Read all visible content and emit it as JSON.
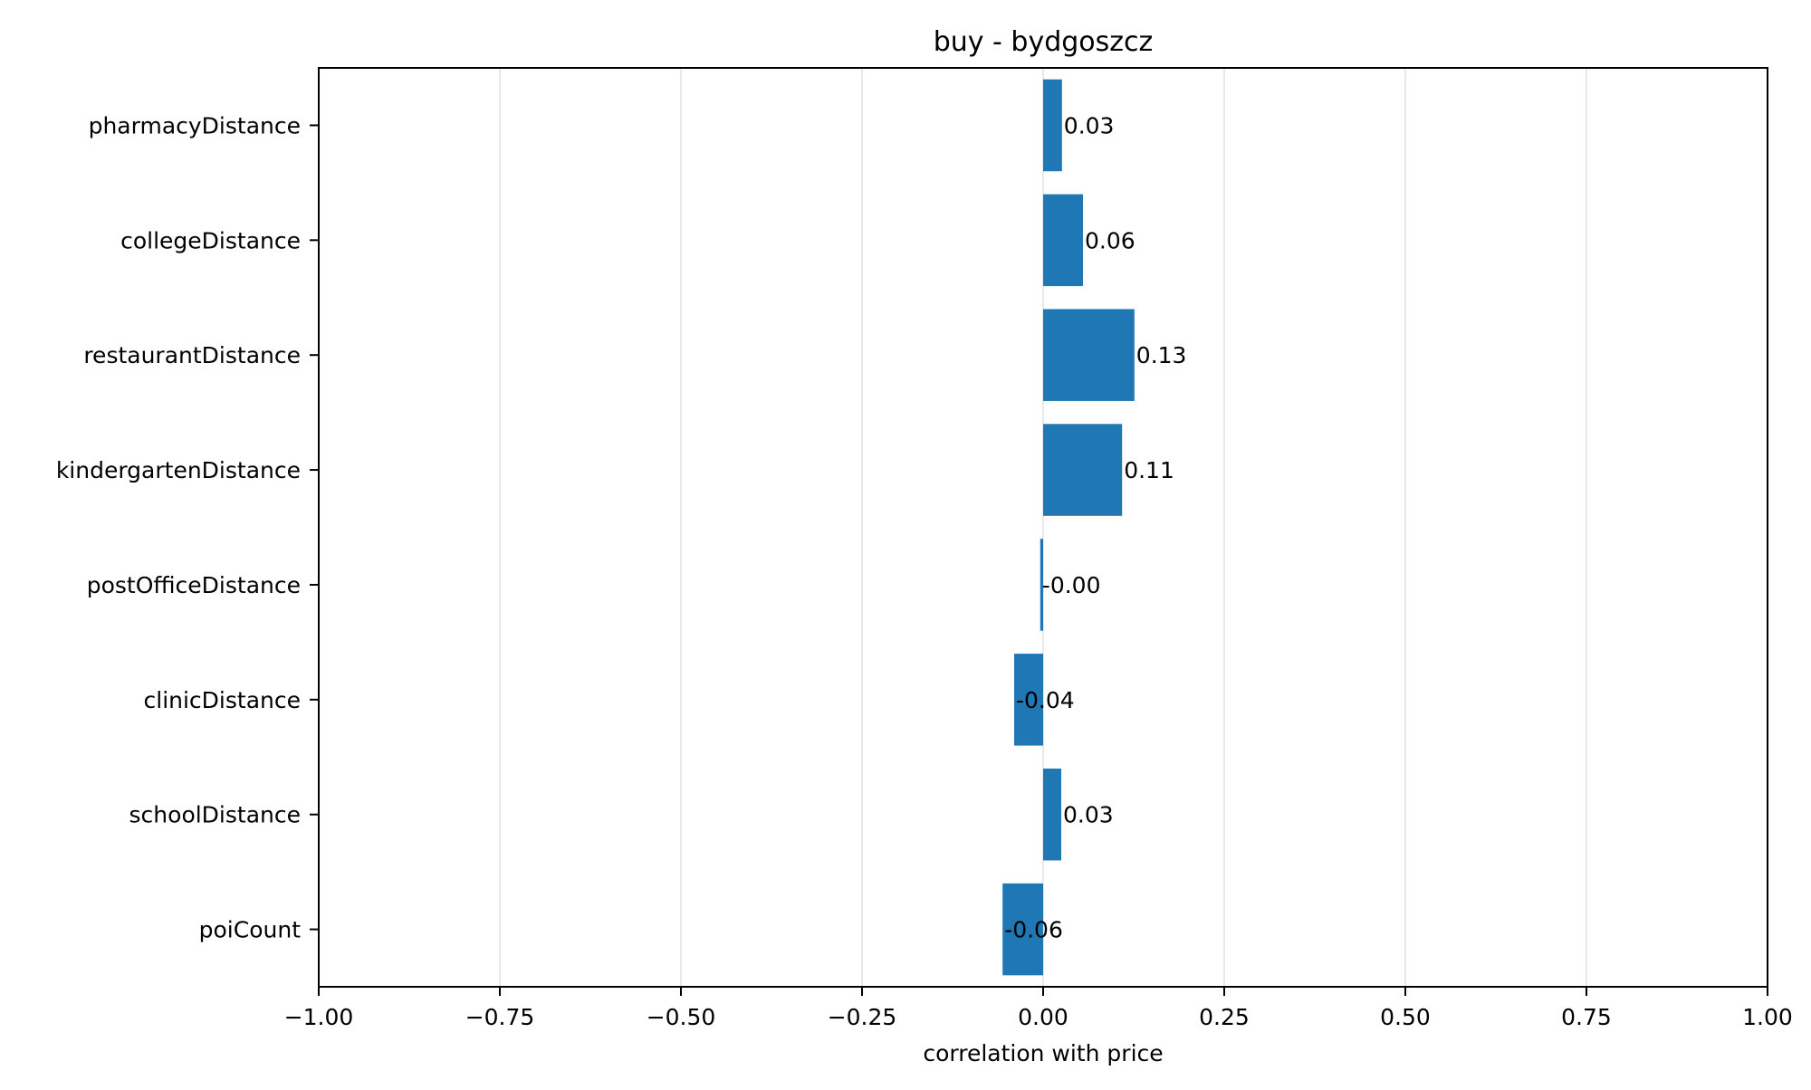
{
  "chart_data": {
    "type": "bar",
    "orientation": "horizontal",
    "title": "buy - bydgoszcz",
    "xlabel": "correlation with price",
    "ylabel": "",
    "xlim": [
      -1.0,
      1.0
    ],
    "x_ticks": [
      -1.0,
      -0.75,
      -0.5,
      -0.25,
      0.0,
      0.25,
      0.5,
      0.75,
      1.0
    ],
    "x_tick_labels": [
      "−1.00",
      "−0.75",
      "−0.50",
      "−0.25",
      "0.00",
      "0.25",
      "0.50",
      "0.75",
      "1.00"
    ],
    "categories": [
      "pharmacyDistance",
      "collegeDistance",
      "restaurantDistance",
      "kindergartenDistance",
      "postOfficeDistance",
      "clinicDistance",
      "schoolDistance",
      "poiCount"
    ],
    "values": [
      0.026,
      0.055,
      0.126,
      0.109,
      -0.004,
      -0.04,
      0.025,
      -0.056
    ],
    "value_labels": [
      "0.03",
      "0.06",
      "0.13",
      "0.11",
      "-0.00",
      "-0.04",
      "0.03",
      "-0.06"
    ],
    "grid": "vertical",
    "bar_color": "#1f77b4",
    "grid_color": "#e0e0e0"
  }
}
